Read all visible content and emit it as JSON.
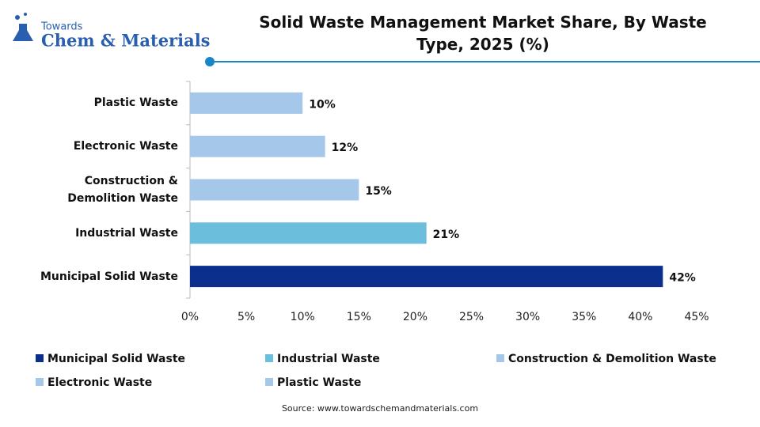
{
  "logo": {
    "top": "Towards",
    "name": "Chem & Materials"
  },
  "chart_data": {
    "type": "hbar",
    "title": "Solid Waste Management Market Share, By Waste Type, 2025 (%)",
    "categories": [
      "Municipal Solid Waste",
      "Industrial Waste",
      "Construction & Demolition Waste",
      "Electronic Waste",
      "Plastic Waste"
    ],
    "values": [
      42,
      21,
      15,
      12,
      10
    ],
    "value_labels": [
      "42%",
      "21%",
      "15%",
      "12%",
      "10%"
    ],
    "colors": [
      "#0b2f8c",
      "#6bbfdc",
      "#a5c7ea",
      "#a5c7ea",
      "#a5c7ea"
    ],
    "xlim": [
      0,
      45
    ],
    "xticks": [
      {
        "value": 0,
        "label": "0%"
      },
      {
        "value": 5,
        "label": "5%"
      },
      {
        "value": 10,
        "label": "10%"
      },
      {
        "value": 15,
        "label": "15%"
      },
      {
        "value": 20,
        "label": "20%"
      },
      {
        "value": 25,
        "label": "25%"
      },
      {
        "value": 30,
        "label": "30%"
      },
      {
        "value": 35,
        "label": "35%"
      },
      {
        "value": 40,
        "label": "40%"
      },
      {
        "value": 45,
        "label": "45%"
      }
    ],
    "legend": "bottom",
    "source": "Source: www.towardschemandmaterials.com"
  }
}
